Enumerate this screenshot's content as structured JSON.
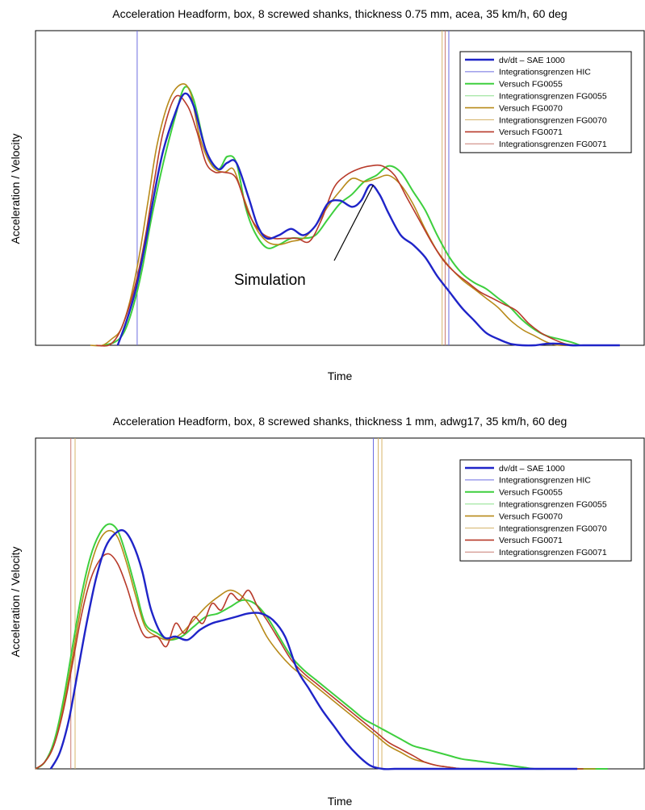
{
  "chart_data": [
    {
      "type": "line",
      "title": "Acceleration Headform, box, 8 screwed shanks, thickness 0.75 mm, acea, 35 km/h, 60 deg",
      "xlabel": "Time",
      "ylabel": "Acceleration / Velocity",
      "xlim": [
        0,
        100
      ],
      "ylim": [
        0,
        100
      ],
      "grid": false,
      "legend_position": "top-right",
      "annotation": {
        "text": "Simulation",
        "target_series": "dv/dt – SAE 1000",
        "target_x": 55.5,
        "target_y": 51
      },
      "series": [
        {
          "name": "dv/dt – SAE 1000",
          "color": "#1f24c8",
          "width": 2.4,
          "x": [
            13.5,
            15,
            16.5,
            18,
            19.5,
            21,
            23,
            24.5,
            26,
            28,
            30,
            31.5,
            33,
            35,
            36.5,
            38,
            40,
            42,
            44,
            46,
            48,
            50,
            52,
            53.5,
            55,
            56.5,
            58,
            60,
            62,
            64,
            66,
            68,
            70,
            72,
            74,
            76,
            78,
            80,
            82,
            84,
            86,
            88,
            90,
            92,
            94,
            96
          ],
          "y": [
            0,
            8,
            18,
            32,
            48,
            62,
            74,
            80,
            76,
            62,
            56,
            58,
            58,
            47,
            38,
            34,
            35,
            37,
            35,
            38,
            45,
            46,
            44,
            46,
            51,
            48,
            42,
            35,
            32,
            28,
            22,
            17,
            12,
            8,
            4,
            2,
            0.5,
            0,
            0,
            0.5,
            0.5,
            0,
            0,
            0,
            0,
            0
          ]
        },
        {
          "name": "Integrationsgrenzen HIC",
          "color": "#6c6ce0",
          "width": 1,
          "type": "vline",
          "x": [
            16.7,
            67.9
          ]
        },
        {
          "name": "Versuch FG0055",
          "color": "#3ecf3e",
          "width": 2,
          "x": [
            11,
            13,
            14.5,
            16,
            17.5,
            19,
            21,
            23,
            24.5,
            26,
            28,
            30,
            31.5,
            33,
            34.5,
            36,
            38,
            40,
            42,
            44,
            46,
            48,
            50,
            52,
            54,
            56,
            58,
            60,
            62,
            64,
            66,
            68,
            70,
            72,
            74,
            76,
            78,
            80,
            82,
            84,
            86,
            88,
            89.5
          ],
          "y": [
            0,
            1,
            4,
            12,
            24,
            40,
            58,
            73,
            82,
            78,
            62,
            56,
            60,
            58,
            44,
            36,
            31,
            32,
            34,
            34,
            35,
            40,
            45,
            48,
            52,
            54,
            57,
            55,
            49,
            43,
            35,
            28,
            23,
            20,
            18,
            15,
            12,
            8,
            5,
            3,
            2,
            1,
            0
          ]
        },
        {
          "name": "Integrationsgrenzen FG0055",
          "color": "#8be08b",
          "width": 1,
          "type": "vline",
          "x": []
        },
        {
          "name": "Versuch FG0070",
          "color": "#b88a1a",
          "width": 1.6,
          "x": [
            9,
            11,
            12.5,
            14,
            15.5,
            17,
            18.5,
            20,
            22,
            24,
            25.5,
            27,
            29,
            31,
            32.5,
            34,
            36,
            38,
            40,
            42,
            44,
            46,
            48,
            50,
            52,
            54,
            56,
            58,
            60,
            62,
            64,
            66,
            68,
            70,
            72,
            74,
            76,
            78,
            80,
            82,
            84,
            86,
            88,
            90
          ],
          "y": [
            0,
            0,
            2,
            5,
            14,
            28,
            46,
            64,
            78,
            83,
            80,
            66,
            57,
            55,
            56,
            48,
            38,
            33,
            32,
            33,
            34,
            38,
            44,
            49,
            53,
            52,
            53,
            54,
            51,
            45,
            37,
            30,
            25,
            21,
            18,
            15,
            12,
            8,
            5,
            3,
            1,
            0,
            0,
            0
          ]
        },
        {
          "name": "Integrationsgrenzen FG0070",
          "color": "#d6b46a",
          "width": 1,
          "type": "vline",
          "x": [
            66.8
          ]
        },
        {
          "name": "Versuch FG0071",
          "color": "#b83a2a",
          "width": 1.6,
          "x": [
            10,
            12,
            13.5,
            15,
            16.5,
            18,
            19.5,
            21,
            23,
            25,
            26.5,
            28,
            29.5,
            31,
            33,
            35,
            37,
            39,
            41,
            43,
            45,
            47,
            49,
            51,
            53,
            55,
            57,
            59,
            61,
            63,
            65,
            67,
            69,
            71,
            73,
            75,
            77,
            79,
            81,
            83,
            85,
            87,
            89
          ],
          "y": [
            0,
            0,
            3,
            10,
            20,
            34,
            52,
            68,
            79,
            76,
            68,
            58,
            55,
            55,
            53,
            42,
            36,
            34,
            34,
            34,
            33,
            40,
            50,
            54,
            56,
            57,
            57,
            54,
            47,
            40,
            33,
            27,
            23,
            20,
            17,
            15,
            13,
            11,
            7,
            4,
            2,
            0.5,
            0
          ]
        },
        {
          "name": "Integrationsgrenzen FG0071",
          "color": "#c97b72",
          "width": 1,
          "type": "vline",
          "x": [
            67.3
          ]
        }
      ]
    },
    {
      "type": "line",
      "title": "Acceleration Headform, box, 8 screwed shanks, thickness 1 mm, adwg17, 35 km/h, 60 deg",
      "xlabel": "Time",
      "ylabel": "Acceleration / Velocity",
      "xlim": [
        0,
        100
      ],
      "ylim": [
        0,
        100
      ],
      "grid": false,
      "legend_position": "top-right",
      "series": [
        {
          "name": "dv/dt – SAE 1000",
          "color": "#1f24c8",
          "width": 2.4,
          "x": [
            2.5,
            4,
            5.5,
            7,
            8.5,
            10,
            11.5,
            13,
            14.5,
            16,
            17.5,
            19,
            21,
            23,
            25,
            27,
            29,
            31,
            33,
            35,
            37,
            39,
            41,
            43,
            45,
            47,
            49,
            51,
            53,
            55,
            57,
            59,
            61,
            63,
            65,
            67,
            69,
            71,
            73,
            75,
            77,
            79,
            81,
            83,
            85,
            87,
            89
          ],
          "y": [
            0,
            5,
            15,
            30,
            45,
            58,
            67,
            71,
            72,
            68,
            60,
            48,
            40,
            40,
            39,
            42,
            44,
            45,
            46,
            47,
            47,
            45,
            40,
            30,
            24,
            18,
            13,
            8,
            4,
            1,
            0,
            0,
            0,
            0,
            0,
            0,
            0,
            0,
            0,
            0,
            0,
            0,
            0,
            0,
            0,
            0,
            0
          ]
        },
        {
          "name": "Integrationsgrenzen HIC",
          "color": "#6c6ce0",
          "width": 1,
          "type": "vline",
          "x": [
            55.5
          ]
        },
        {
          "name": "Versuch FG0055",
          "color": "#3ecf3e",
          "width": 2,
          "x": [
            0,
            1.5,
            3,
            4.5,
            6,
            7.5,
            9,
            10.5,
            12,
            13.5,
            15,
            16.5,
            18,
            20,
            22,
            24,
            26,
            28,
            30,
            32,
            34,
            36,
            38,
            40,
            42,
            44,
            46,
            48,
            50,
            52,
            54,
            56,
            58,
            60,
            62,
            64,
            66,
            68,
            70,
            72,
            74,
            76,
            78,
            80,
            82,
            84,
            86,
            88,
            90,
            92,
            94
          ],
          "y": [
            0,
            2,
            8,
            20,
            36,
            52,
            64,
            71,
            74,
            72,
            64,
            54,
            44,
            41,
            39,
            40,
            43,
            46,
            47,
            49,
            51,
            50,
            46,
            40,
            34,
            30,
            27,
            24,
            21,
            18,
            15,
            13,
            11,
            9,
            7,
            6,
            5,
            4,
            3,
            2.5,
            2,
            1.5,
            1,
            0.5,
            0,
            0,
            0,
            0,
            0,
            0,
            0
          ]
        },
        {
          "name": "Integrationsgrenzen FG0055",
          "color": "#8be08b",
          "width": 1,
          "type": "vline",
          "x": []
        },
        {
          "name": "Versuch FG0070",
          "color": "#b88a1a",
          "width": 1.6,
          "x": [
            0,
            1.5,
            3,
            4.5,
            6,
            7.5,
            9,
            10.5,
            12,
            13.5,
            15,
            16.5,
            18,
            20,
            22,
            24,
            26,
            28,
            30,
            32,
            34,
            36,
            38,
            40,
            42,
            44,
            46,
            48,
            50,
            52,
            54,
            56,
            58,
            60,
            62,
            64,
            66,
            68,
            70,
            72,
            74,
            76,
            78,
            80,
            82,
            84,
            86,
            88,
            90,
            92
          ],
          "y": [
            0,
            2,
            7,
            18,
            33,
            49,
            61,
            69,
            72,
            70,
            62,
            52,
            43,
            40,
            39,
            41,
            45,
            49,
            52,
            54,
            52,
            47,
            40,
            35,
            31,
            28,
            25,
            22,
            19,
            16,
            13,
            10,
            7,
            5,
            3,
            2,
            1,
            0.5,
            0,
            0,
            0,
            0,
            0,
            0,
            0,
            0,
            0,
            0,
            0,
            0
          ]
        },
        {
          "name": "Integrationsgrenzen FG0070",
          "color": "#d6b46a",
          "width": 1,
          "type": "vline",
          "x": [
            6.5,
            56.3,
            56.9
          ]
        },
        {
          "name": "Versuch FG0071",
          "color": "#b83a2a",
          "width": 1.6,
          "x": [
            0,
            1.5,
            3,
            4.5,
            6,
            7.5,
            9,
            10.5,
            12,
            13.5,
            15,
            16.5,
            18,
            20,
            21.5,
            23,
            24.5,
            26,
            27.5,
            29,
            30.5,
            32,
            33.5,
            35,
            36.5,
            38,
            40,
            42,
            44,
            46,
            48,
            50,
            52,
            54,
            56,
            58,
            60,
            62,
            64,
            66,
            68,
            70,
            72,
            74,
            76,
            78,
            80,
            82,
            84,
            86,
            88,
            90
          ],
          "y": [
            0,
            2,
            7,
            17,
            31,
            46,
            57,
            63,
            65,
            62,
            55,
            46,
            40,
            40,
            37,
            44,
            41,
            46,
            44,
            50,
            48,
            53,
            51,
            54,
            49,
            45,
            39,
            33,
            29,
            26,
            23,
            20,
            17,
            14,
            11,
            8,
            6,
            4,
            2,
            1,
            0.5,
            0,
            0,
            0,
            0,
            0,
            0,
            0,
            0,
            0,
            0,
            0
          ]
        },
        {
          "name": "Integrationsgrenzen FG0071",
          "color": "#c97b72",
          "width": 1,
          "type": "vline",
          "x": [
            5.8
          ]
        }
      ]
    }
  ]
}
